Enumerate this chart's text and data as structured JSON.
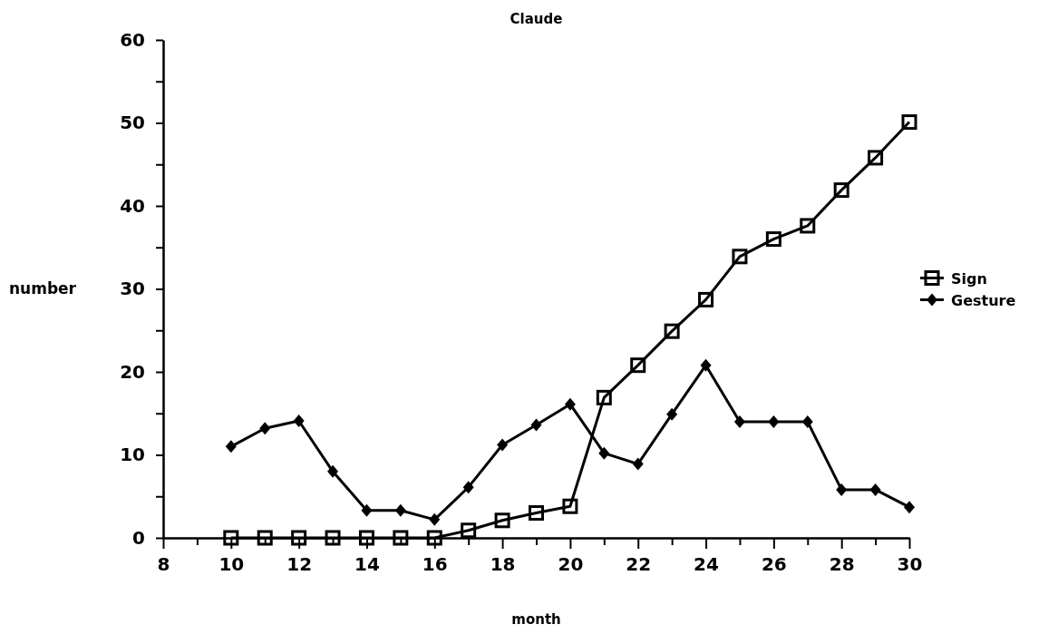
{
  "chart_data": {
    "type": "line",
    "title": "Claude",
    "xlabel": "month",
    "ylabel": "number",
    "x": [
      10,
      11,
      12,
      13,
      14,
      15,
      16,
      17,
      18,
      19,
      20,
      21,
      22,
      23,
      24,
      25,
      26,
      27,
      28,
      29,
      30
    ],
    "xlim": [
      8,
      30
    ],
    "xticks": [
      8,
      {
        "value": 9,
        "label": null
      },
      10,
      {
        "value": 11,
        "label": null
      },
      12,
      {
        "value": 13,
        "label": null
      },
      14,
      {
        "value": 15,
        "label": null
      },
      16,
      {
        "value": 17,
        "label": null
      },
      18,
      {
        "value": 19,
        "label": null
      },
      20,
      {
        "value": 21,
        "label": null
      },
      22,
      {
        "value": 23,
        "label": null
      },
      24,
      {
        "value": 25,
        "label": null
      },
      26,
      {
        "value": 27,
        "label": null
      },
      28,
      {
        "value": 29,
        "label": null
      },
      30
    ],
    "ylim": [
      0,
      60
    ],
    "yticks": [
      0,
      {
        "value": 5,
        "label": null
      },
      10,
      {
        "value": 15,
        "label": null
      },
      20,
      {
        "value": 25,
        "label": null
      },
      30,
      {
        "value": 35,
        "label": null
      },
      40,
      {
        "value": 45,
        "label": null
      },
      50,
      {
        "value": 55,
        "label": null
      },
      60
    ],
    "series": [
      {
        "name": "Sign",
        "color": "#000000",
        "marker": "square",
        "values": [
          0,
          0,
          0,
          0,
          0,
          0,
          0,
          0.9,
          2.1,
          3,
          3.8,
          16.9,
          20.8,
          24.9,
          28.7,
          33.9,
          36,
          37.6,
          41.9,
          45.8,
          50.1
        ]
      },
      {
        "name": "Gesture",
        "color": "#000000",
        "marker": "diamond",
        "values": [
          11,
          13.2,
          14.1,
          8,
          3.3,
          3.3,
          2.2,
          6.1,
          11.2,
          13.6,
          16.1,
          10.2,
          8.9,
          14.9,
          20.8,
          14,
          14,
          14,
          5.8,
          5.8,
          3.7
        ]
      }
    ],
    "legend": "right",
    "grid": false,
    "line_style": "solid"
  }
}
